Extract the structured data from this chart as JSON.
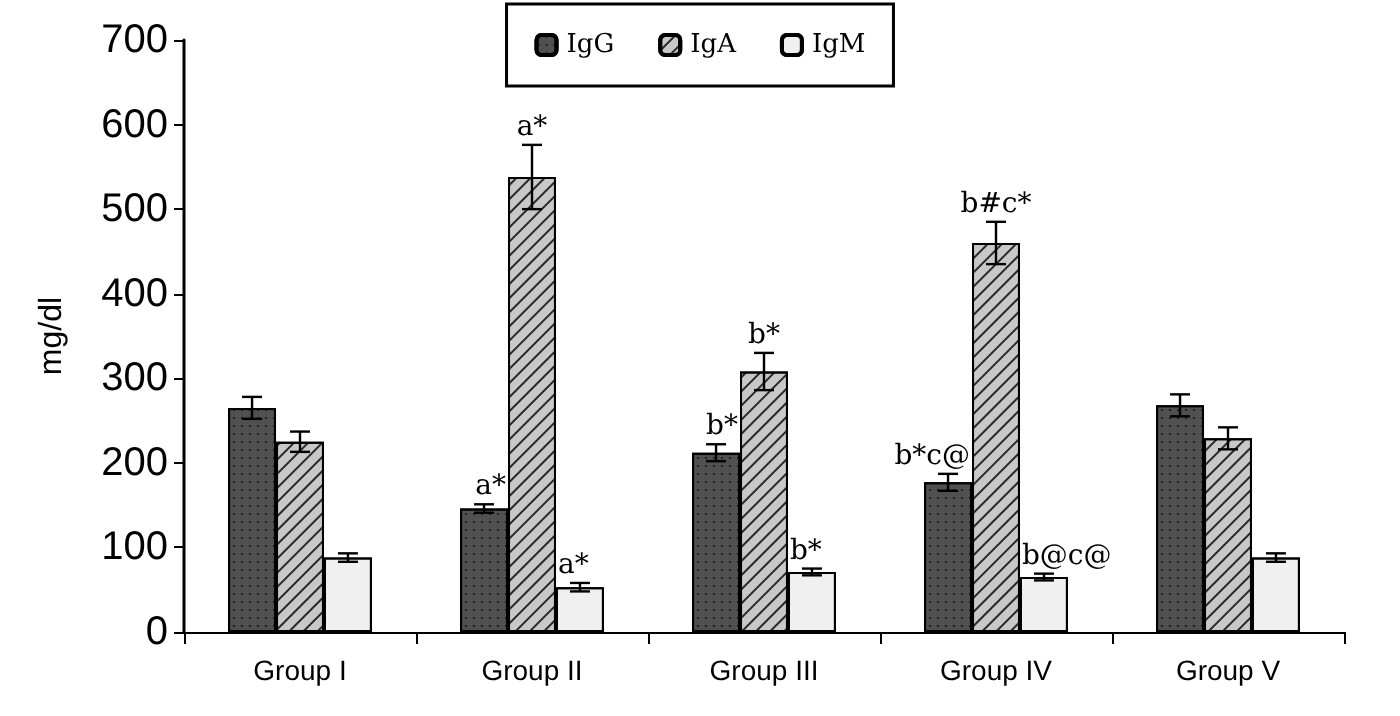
{
  "chart_data": {
    "type": "bar",
    "ylabel": "mg/dl",
    "categories": [
      "Group I",
      "Group II",
      "Group III",
      "Group IV",
      "Group V"
    ],
    "series": [
      {
        "name": "IgG",
        "color": "#505050",
        "values": [
          265,
          146,
          212,
          177,
          268
        ],
        "errors": [
          13,
          5,
          10,
          10,
          13
        ],
        "value_labels": [
          null,
          "a*",
          "b*",
          "b*c@",
          null
        ]
      },
      {
        "name": "IgA",
        "color": "#c8c8c8",
        "values": [
          225,
          538,
          308,
          460,
          229
        ],
        "errors": [
          12,
          38,
          22,
          25,
          13
        ],
        "value_labels": [
          null,
          "a*",
          "b*",
          "b#c*",
          null
        ]
      },
      {
        "name": "IgM",
        "color": "#f0f0f0",
        "values": [
          88,
          53,
          71,
          65,
          88
        ],
        "errors": [
          5,
          5,
          4,
          4,
          5
        ],
        "value_labels": [
          null,
          "a*",
          "b*",
          "b@c@",
          null
        ]
      }
    ],
    "ylim": [
      0,
      700
    ],
    "yticks": [
      0,
      100,
      200,
      300,
      400,
      500,
      600,
      700
    ],
    "grid": false,
    "legend": "top"
  }
}
